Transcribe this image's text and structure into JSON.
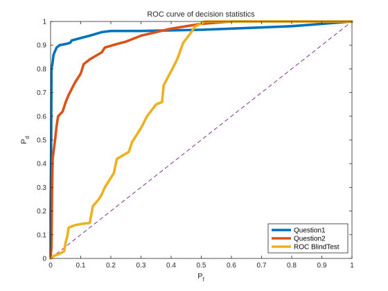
{
  "chart_data": {
    "type": "line",
    "title": "ROC curve of decision statistics",
    "xlabel": {
      "main": "P",
      "sub": "f"
    },
    "ylabel": {
      "main": "P",
      "sub": "d"
    },
    "xlim": [
      0,
      1
    ],
    "ylim": [
      0,
      1
    ],
    "xticks": [
      "0",
      "0.1",
      "0.2",
      "0.3",
      "0.4",
      "0.5",
      "0.6",
      "0.7",
      "0.8",
      "0.9",
      "1"
    ],
    "yticks": [
      "0",
      "0.1",
      "0.2",
      "0.3",
      "0.4",
      "0.5",
      "0.6",
      "0.7",
      "0.8",
      "0.9",
      "1"
    ],
    "grid": false,
    "legend_position": "bottom-right",
    "reference_line": {
      "x": [
        0,
        1
      ],
      "y": [
        0,
        1
      ],
      "color": "#7E2F8E",
      "style": "dashed"
    },
    "series": [
      {
        "name": "Question1",
        "color": "#0072BD",
        "points": [
          [
            0,
            0
          ],
          [
            0,
            0.2
          ],
          [
            0.002,
            0.5
          ],
          [
            0.003,
            0.8
          ],
          [
            0.006,
            0.82
          ],
          [
            0.01,
            0.86
          ],
          [
            0.02,
            0.89
          ],
          [
            0.03,
            0.9
          ],
          [
            0.05,
            0.905
          ],
          [
            0.065,
            0.91
          ],
          [
            0.07,
            0.92
          ],
          [
            0.1,
            0.93
          ],
          [
            0.13,
            0.94
          ],
          [
            0.17,
            0.955
          ],
          [
            0.2,
            0.96
          ],
          [
            0.3,
            0.96
          ],
          [
            0.5,
            0.965
          ],
          [
            0.6,
            0.97
          ],
          [
            0.7,
            0.975
          ],
          [
            0.8,
            0.98
          ],
          [
            0.9,
            0.99
          ],
          [
            1,
            1
          ]
        ]
      },
      {
        "name": "Question2",
        "color": "#D95319",
        "points": [
          [
            0,
            0
          ],
          [
            0.003,
            0.05
          ],
          [
            0.005,
            0.3
          ],
          [
            0.007,
            0.42
          ],
          [
            0.01,
            0.45
          ],
          [
            0.015,
            0.5
          ],
          [
            0.02,
            0.56
          ],
          [
            0.025,
            0.6
          ],
          [
            0.04,
            0.62
          ],
          [
            0.05,
            0.66
          ],
          [
            0.06,
            0.69
          ],
          [
            0.08,
            0.74
          ],
          [
            0.1,
            0.78
          ],
          [
            0.11,
            0.82
          ],
          [
            0.13,
            0.84
          ],
          [
            0.17,
            0.87
          ],
          [
            0.18,
            0.89
          ],
          [
            0.22,
            0.905
          ],
          [
            0.25,
            0.915
          ],
          [
            0.3,
            0.94
          ],
          [
            0.35,
            0.955
          ],
          [
            0.4,
            0.97
          ],
          [
            0.45,
            0.98
          ],
          [
            0.5,
            0.99
          ],
          [
            0.6,
            1
          ],
          [
            1,
            1
          ]
        ]
      },
      {
        "name": "ROC BlindTest",
        "color": "#EDB120",
        "points": [
          [
            0,
            0
          ],
          [
            0.01,
            0.01
          ],
          [
            0.03,
            0.02
          ],
          [
            0.045,
            0.03
          ],
          [
            0.05,
            0.07
          ],
          [
            0.055,
            0.09
          ],
          [
            0.06,
            0.13
          ],
          [
            0.08,
            0.14
          ],
          [
            0.1,
            0.145
          ],
          [
            0.13,
            0.15
          ],
          [
            0.14,
            0.22
          ],
          [
            0.16,
            0.25
          ],
          [
            0.17,
            0.27
          ],
          [
            0.18,
            0.3
          ],
          [
            0.21,
            0.36
          ],
          [
            0.22,
            0.42
          ],
          [
            0.26,
            0.45
          ],
          [
            0.27,
            0.49
          ],
          [
            0.3,
            0.55
          ],
          [
            0.32,
            0.6
          ],
          [
            0.35,
            0.65
          ],
          [
            0.37,
            0.66
          ],
          [
            0.375,
            0.73
          ],
          [
            0.4,
            0.79
          ],
          [
            0.42,
            0.84
          ],
          [
            0.44,
            0.91
          ],
          [
            0.47,
            0.96
          ],
          [
            0.48,
            0.98
          ],
          [
            0.5,
            0.99
          ],
          [
            0.51,
            1
          ],
          [
            1,
            1
          ]
        ]
      }
    ]
  }
}
